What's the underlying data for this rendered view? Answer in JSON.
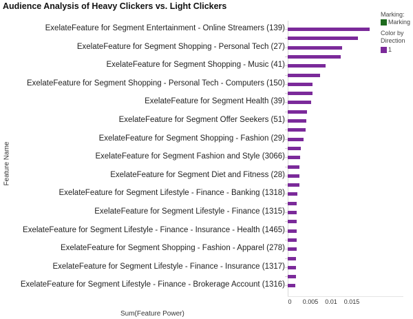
{
  "chart_data": {
    "type": "bar",
    "orientation": "horizontal",
    "title": "Audience Analysis of Heavy Clickers vs. Light Clickers",
    "xlabel": "Sum(Feature Power)",
    "ylabel": "Feature Name",
    "xlim": [
      0,
      0.0215
    ],
    "xticks": [
      "0",
      "0.005",
      "0.01",
      "0.015"
    ],
    "grid": false,
    "legend_position": "right",
    "bar_color": "#7b2a9a",
    "categories": [
      "ExelateFeature for Segment Entertainment - Online Streamers (139)",
      "",
      "ExelateFeature for Segment Shopping - Personal Tech (27)",
      "",
      "ExelateFeature for Segment Shopping - Music (41)",
      "",
      "ExelateFeature for Segment Shopping - Personal Tech - Computers (150)",
      "",
      "ExelateFeature for Segment Health (39)",
      "",
      "ExelateFeature for Segment Offer Seekers (51)",
      "",
      "ExelateFeature for Segment Shopping - Fashion (29)",
      "",
      "ExelateFeature for Segment Fashion and Style (3066)",
      "",
      "ExelateFeature for Segment Diet and Fitness (28)",
      "",
      "ExelateFeature for Segment Lifestyle - Finance - Banking (1318)",
      "",
      "ExelateFeature for Segment Lifestyle - Finance (1315)",
      "",
      "ExelateFeature for Segment Lifestyle - Finance - Insurance - Health (1465)",
      "",
      "ExelateFeature for Segment Shopping - Fashion - Apparel (278)",
      "",
      "ExelateFeature for Segment Lifestyle - Finance - Insurance (1317)",
      "",
      "ExelateFeature for Segment Lifestyle - Finance - Brokerage Account (1316)"
    ],
    "series": [
      {
        "name": "1",
        "values": [
          0.0198,
          0.017,
          0.0132,
          0.0128,
          0.0092,
          0.0078,
          0.006,
          0.006,
          0.0057,
          0.0047,
          0.0045,
          0.0043,
          0.0038,
          0.0032,
          0.003,
          0.0028,
          0.0028,
          0.0028,
          0.0023,
          0.0022,
          0.0022,
          0.0022,
          0.0022,
          0.0022,
          0.0022,
          0.002,
          0.002,
          0.002,
          0.0018
        ]
      }
    ]
  },
  "legend": {
    "marking_title": "Marking:",
    "marking_label": "Marking",
    "marking_color": "#1e6b1e",
    "color_title": "Color by Direction",
    "color_label": "1",
    "color_color": "#7b2a9a"
  }
}
